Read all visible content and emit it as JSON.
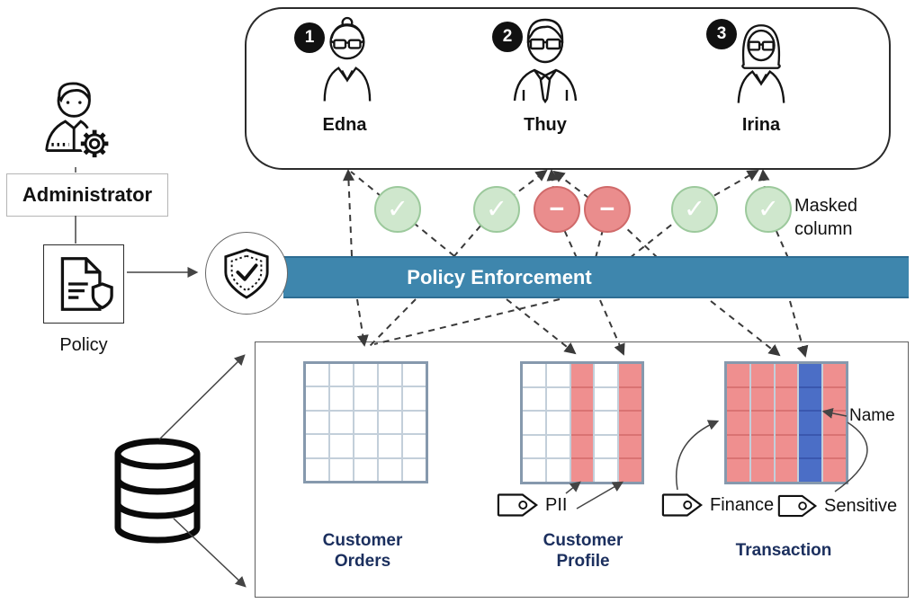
{
  "administrator": {
    "label": "Administrator"
  },
  "policy": {
    "label": "Policy"
  },
  "enforcement_bar": {
    "label": "Policy Enforcement",
    "color": "#3e86ad"
  },
  "users_panel": {
    "users": [
      {
        "badge": "1",
        "name": "Edna"
      },
      {
        "badge": "2",
        "name": "Thuy"
      },
      {
        "badge": "3",
        "name": "Irina"
      }
    ]
  },
  "access_indicators": [
    {
      "status": "allowed",
      "glyph": "✓"
    },
    {
      "status": "allowed",
      "glyph": "✓"
    },
    {
      "status": "denied",
      "glyph": "−"
    },
    {
      "status": "denied",
      "glyph": "−"
    },
    {
      "status": "allowed",
      "glyph": "✓"
    },
    {
      "status": "allowed",
      "glyph": "✓"
    }
  ],
  "annotations": {
    "masked_column": "Masked column",
    "name_column": "Name"
  },
  "database": {
    "tables": [
      {
        "name": "Customer Orders",
        "rows": 5,
        "columns": [
          "plain",
          "plain",
          "plain",
          "plain",
          "plain"
        ],
        "tags": []
      },
      {
        "name": "Customer Profile",
        "rows": 5,
        "columns": [
          "plain",
          "plain",
          "pii",
          "plain",
          "pii"
        ],
        "tags": [
          "PII"
        ]
      },
      {
        "name": "Transaction",
        "rows": 5,
        "columns": [
          "finance",
          "finance",
          "finance",
          "sensitive",
          "finance"
        ],
        "tags": [
          "Finance",
          "Sensitive"
        ]
      }
    ]
  },
  "tag_labels": {
    "pii": "PII",
    "finance": "Finance",
    "sensitive": "Sensitive"
  },
  "colors": {
    "allowed_fill": "#cfe7cd",
    "allowed_border": "#9cc99c",
    "denied_fill": "#ea8d8d",
    "denied_border": "#d06a6a",
    "masked_cell": "#ef8f8f",
    "masked_cell_line": "#d97373",
    "sensitive_cell": "#4b6ec6",
    "sensitive_cell_line": "#3a57ae",
    "grid_line": "#c3cfda",
    "table_border": "#8699ad",
    "table_label_text": "#1b2f5e",
    "bar_text": "#ffffff"
  }
}
